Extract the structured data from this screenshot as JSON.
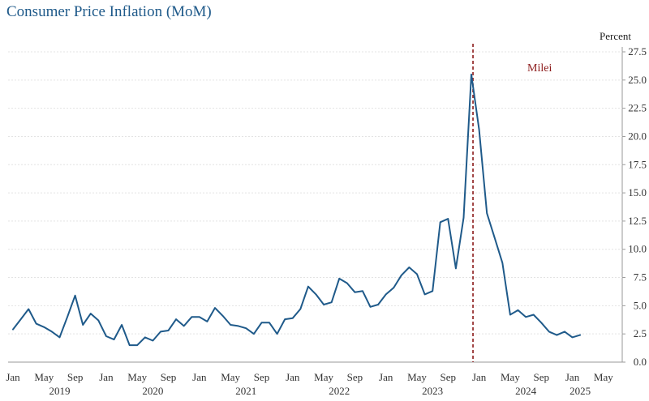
{
  "chart_data": {
    "type": "line",
    "title": "Consumer Price Inflation (MoM)",
    "ylabel": "Percent",
    "ylim": [
      0,
      27.5
    ],
    "yticks": [
      "0.0",
      "2.5",
      "5.0",
      "7.5",
      "10.0",
      "12.5",
      "15.0",
      "17.5",
      "20.0",
      "22.5",
      "25.0",
      "27.5"
    ],
    "xticks": [
      {
        "month": 0,
        "label": "Jan"
      },
      {
        "month": 4,
        "label": "May"
      },
      {
        "month": 8,
        "label": "Sep"
      },
      {
        "month": 12,
        "label": "Jan"
      },
      {
        "month": 16,
        "label": "May"
      },
      {
        "month": 20,
        "label": "Sep"
      },
      {
        "month": 24,
        "label": "Jan"
      },
      {
        "month": 28,
        "label": "May"
      },
      {
        "month": 32,
        "label": "Sep"
      },
      {
        "month": 36,
        "label": "Jan"
      },
      {
        "month": 40,
        "label": "May"
      },
      {
        "month": 44,
        "label": "Sep"
      },
      {
        "month": 48,
        "label": "Jan"
      },
      {
        "month": 52,
        "label": "May"
      },
      {
        "month": 56,
        "label": "Sep"
      },
      {
        "month": 60,
        "label": "Jan"
      },
      {
        "month": 64,
        "label": "May"
      },
      {
        "month": 68,
        "label": "Sep"
      },
      {
        "month": 72,
        "label": "Jan"
      },
      {
        "month": 76,
        "label": "May"
      }
    ],
    "years": [
      {
        "month": 6,
        "label": "2019"
      },
      {
        "month": 18,
        "label": "2020"
      },
      {
        "month": 30,
        "label": "2021"
      },
      {
        "month": 42,
        "label": "2022"
      },
      {
        "month": 54,
        "label": "2023"
      },
      {
        "month": 66,
        "label": "2024"
      },
      {
        "month": 73,
        "label": "2025"
      }
    ],
    "annotation": {
      "label": "Milei",
      "month": 59
    }
  },
  "series": [
    {
      "name": "Consumer Price Inflation (MoM)",
      "color": "#1f5a8a",
      "start": "Jan 2019",
      "values": [
        2.9,
        3.8,
        4.7,
        3.4,
        3.1,
        2.7,
        2.2,
        4.0,
        5.9,
        3.3,
        4.3,
        3.7,
        2.3,
        2.0,
        3.3,
        1.5,
        1.5,
        2.2,
        1.9,
        2.7,
        2.8,
        3.8,
        3.2,
        4.0,
        4.0,
        3.6,
        4.8,
        4.1,
        3.3,
        3.2,
        3.0,
        2.5,
        3.5,
        3.5,
        2.5,
        3.8,
        3.9,
        4.7,
        6.7,
        6.0,
        5.1,
        5.3,
        7.4,
        7.0,
        6.2,
        6.3,
        4.9,
        5.1,
        6.0,
        6.6,
        7.7,
        8.4,
        7.8,
        6.0,
        6.3,
        12.4,
        12.7,
        8.3,
        12.8,
        25.5,
        20.6,
        13.2,
        11.0,
        8.8,
        4.2,
        4.6,
        4.0,
        4.2,
        3.5,
        2.7,
        2.4,
        2.7,
        2.2,
        2.4
      ]
    }
  ]
}
